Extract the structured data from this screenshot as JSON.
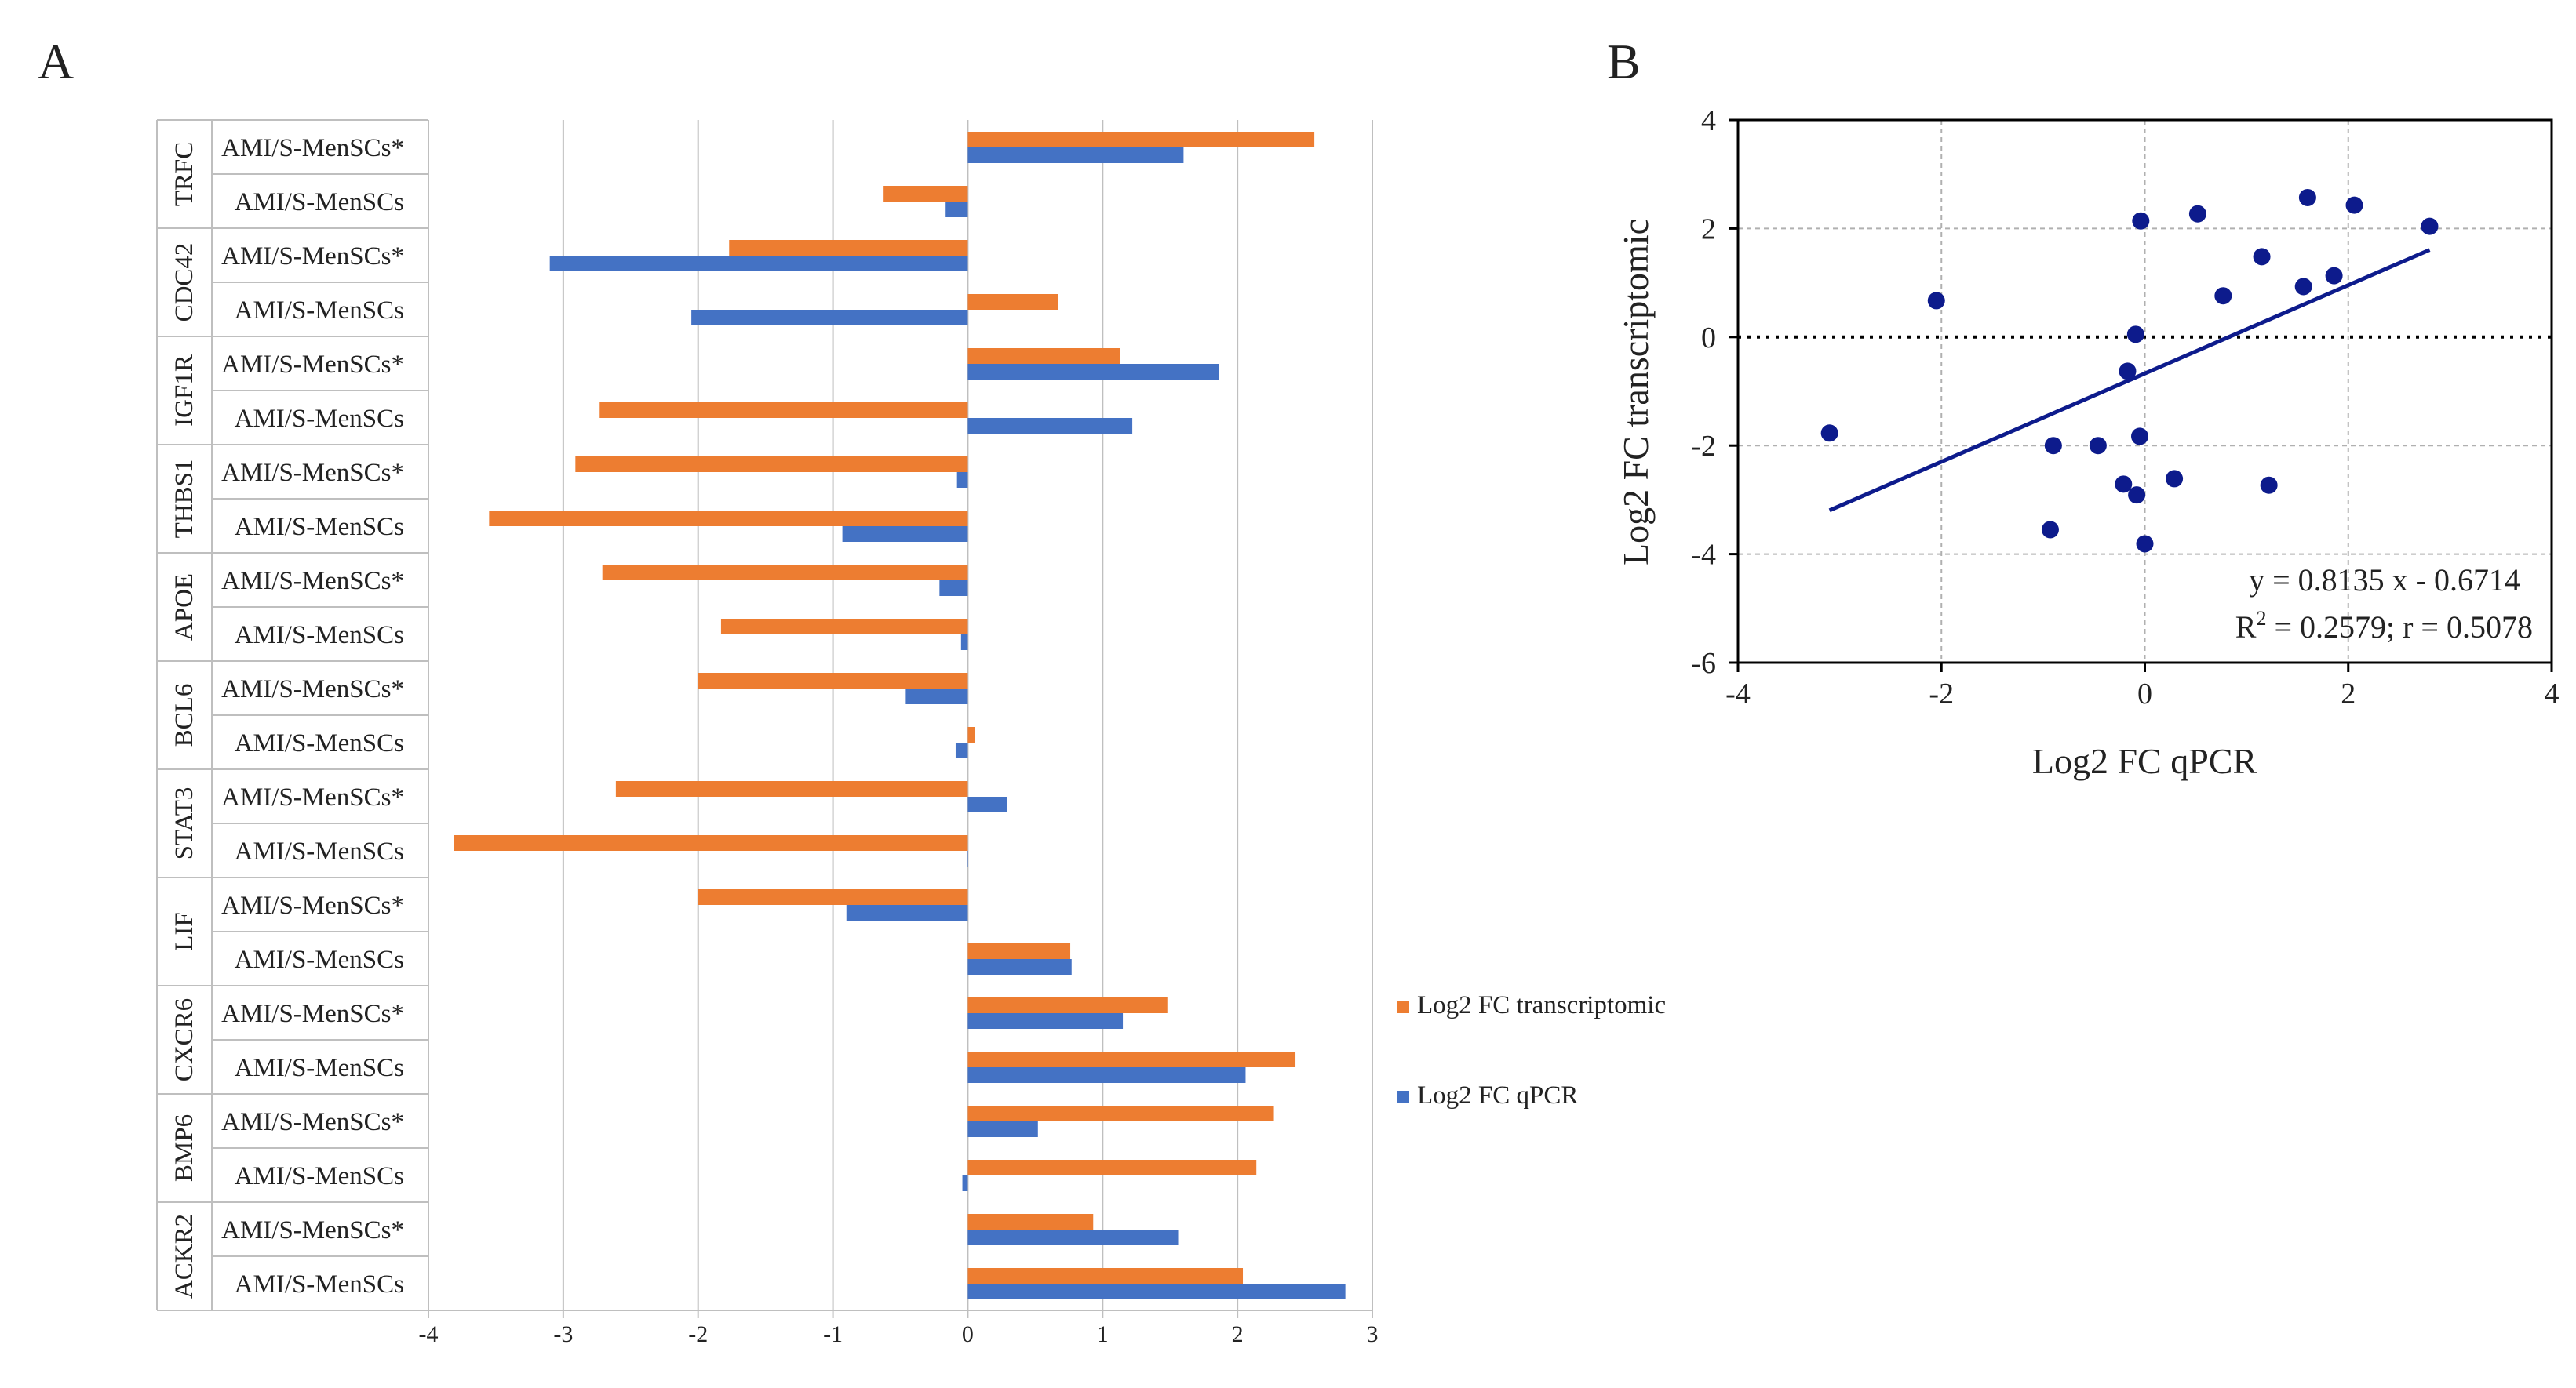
{
  "panel_a_letter": "A",
  "panel_b_letter": "B",
  "chart_data": [
    {
      "type": "bar",
      "orientation": "horizontal",
      "panel": "A",
      "xlim": [
        -4,
        3
      ],
      "xticks": [
        "-4",
        "-3",
        "-2",
        "-1",
        "0",
        "1",
        "2",
        "3"
      ],
      "groups": [
        {
          "gene": "TRFC",
          "rows": [
            {
              "label": "AMI/S-MenSCs*",
              "transcriptomic": 2.57,
              "qpcr": 1.6
            },
            {
              "label": "AMI/S-MenSCs",
              "transcriptomic": -0.63,
              "qpcr": -0.17
            }
          ]
        },
        {
          "gene": "CDC42",
          "rows": [
            {
              "label": "AMI/S-MenSCs*",
              "transcriptomic": -1.77,
              "qpcr": -3.1
            },
            {
              "label": "AMI/S-MenSCs",
              "transcriptomic": 0.67,
              "qpcr": -2.05
            }
          ]
        },
        {
          "gene": "IGF1R",
          "rows": [
            {
              "label": "AMI/S-MenSCs*",
              "transcriptomic": 1.13,
              "qpcr": 1.86
            },
            {
              "label": "AMI/S-MenSCs",
              "transcriptomic": -2.73,
              "qpcr": 1.22
            }
          ]
        },
        {
          "gene": "THBS1",
          "rows": [
            {
              "label": "AMI/S-MenSCs*",
              "transcriptomic": -2.91,
              "qpcr": -0.08
            },
            {
              "label": "AMI/S-MenSCs",
              "transcriptomic": -3.55,
              "qpcr": -0.93
            }
          ]
        },
        {
          "gene": "APOE",
          "rows": [
            {
              "label": "AMI/S-MenSCs*",
              "transcriptomic": -2.71,
              "qpcr": -0.21
            },
            {
              "label": "AMI/S-MenSCs",
              "transcriptomic": -1.83,
              "qpcr": -0.05
            }
          ]
        },
        {
          "gene": "BCL6",
          "rows": [
            {
              "label": "AMI/S-MenSCs*",
              "transcriptomic": -2.0,
              "qpcr": -0.46
            },
            {
              "label": "AMI/S-MenSCs",
              "transcriptomic": 0.05,
              "qpcr": -0.09
            }
          ]
        },
        {
          "gene": "STAT3",
          "rows": [
            {
              "label": "AMI/S-MenSCs*",
              "transcriptomic": -2.61,
              "qpcr": 0.29
            },
            {
              "label": "AMI/S-MenSCs",
              "transcriptomic": -3.81,
              "qpcr": 0.0
            }
          ]
        },
        {
          "gene": "LIF",
          "rows": [
            {
              "label": "AMI/S-MenSCs*",
              "transcriptomic": -2.0,
              "qpcr": -0.9
            },
            {
              "label": "AMI/S-MenSCs",
              "transcriptomic": 0.76,
              "qpcr": 0.77
            }
          ]
        },
        {
          "gene": "CXCR6",
          "rows": [
            {
              "label": "AMI/S-MenSCs*",
              "transcriptomic": 1.48,
              "qpcr": 1.15
            },
            {
              "label": "AMI/S-MenSCs",
              "transcriptomic": 2.43,
              "qpcr": 2.06
            }
          ]
        },
        {
          "gene": "BMP6",
          "rows": [
            {
              "label": "AMI/S-MenSCs*",
              "transcriptomic": 2.27,
              "qpcr": 0.52
            },
            {
              "label": "AMI/S-MenSCs",
              "transcriptomic": 2.14,
              "qpcr": -0.04
            }
          ]
        },
        {
          "gene": "ACKR2",
          "rows": [
            {
              "label": "AMI/S-MenSCs*",
              "transcriptomic": 0.93,
              "qpcr": 1.56
            },
            {
              "label": "AMI/S-MenSCs",
              "transcriptomic": 2.04,
              "qpcr": 2.8
            }
          ]
        }
      ],
      "series": [
        {
          "key": "transcriptomic",
          "name": "Log2 FC transcriptomic",
          "color": "#ed7d31"
        },
        {
          "key": "qpcr",
          "name": "Log2 FC qPCR",
          "color": "#4472c4"
        }
      ],
      "legend_position": "right"
    },
    {
      "type": "scatter",
      "panel": "B",
      "xlabel": "Log2 FC qPCR",
      "ylabel": "Log2 FC transcriptomic",
      "xlim": [
        -4,
        4
      ],
      "ylim": [
        -6,
        4
      ],
      "xticks": [
        "-4",
        "-2",
        "0",
        "2",
        "4"
      ],
      "yticks": [
        "4",
        "2",
        "0",
        "-2",
        "-4",
        "-6"
      ],
      "grid": true,
      "point_color": "#0d1b8c",
      "points": [
        {
          "x": -3.1,
          "y": -1.77
        },
        {
          "x": -2.05,
          "y": 0.67
        },
        {
          "x": -0.93,
          "y": -3.55
        },
        {
          "x": -0.9,
          "y": -2.0
        },
        {
          "x": -0.46,
          "y": -2.0
        },
        {
          "x": -0.21,
          "y": -2.71
        },
        {
          "x": -0.17,
          "y": -0.63
        },
        {
          "x": -0.09,
          "y": 0.05
        },
        {
          "x": -0.08,
          "y": -2.91
        },
        {
          "x": -0.05,
          "y": -1.83
        },
        {
          "x": -0.04,
          "y": 2.14
        },
        {
          "x": 0.0,
          "y": -3.81
        },
        {
          "x": 0.29,
          "y": -2.61
        },
        {
          "x": 0.52,
          "y": 2.27
        },
        {
          "x": 0.77,
          "y": 0.76
        },
        {
          "x": 1.15,
          "y": 1.48
        },
        {
          "x": 1.22,
          "y": -2.73
        },
        {
          "x": 1.56,
          "y": 0.93
        },
        {
          "x": 1.6,
          "y": 2.57
        },
        {
          "x": 1.86,
          "y": 1.13
        },
        {
          "x": 2.06,
          "y": 2.43
        },
        {
          "x": 2.8,
          "y": 2.04
        }
      ],
      "fit": {
        "slope": 0.8135,
        "intercept": -0.6714,
        "x_range": [
          -3.1,
          2.8
        ]
      },
      "equation": "y = 0.8135 x - 0.6714",
      "r2_prefix": "R",
      "r2_exponent": "2",
      "r2_suffix": " = 0.2579; r = 0.5078",
      "zero_line": true
    }
  ]
}
